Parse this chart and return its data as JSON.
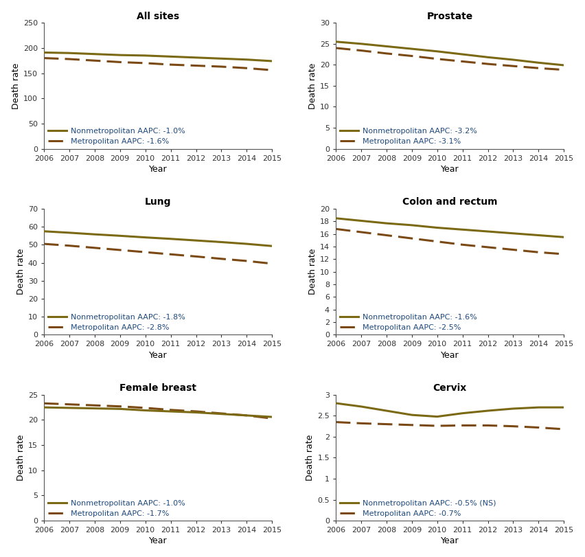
{
  "years": [
    2006,
    2007,
    2008,
    2009,
    2010,
    2011,
    2012,
    2013,
    2014,
    2015
  ],
  "panels": [
    {
      "title": "All sites",
      "nonmetro": [
        191,
        190,
        188,
        186,
        185,
        183,
        181,
        179,
        177,
        174
      ],
      "metro": [
        180,
        178,
        175,
        172,
        170,
        167,
        165,
        163,
        160,
        156
      ],
      "ylim": [
        0,
        250
      ],
      "yticks": [
        0,
        50,
        100,
        150,
        200,
        250
      ],
      "nonmetro_aapc": "-1.0%",
      "metro_aapc": "-1.6%"
    },
    {
      "title": "Prostate",
      "nonmetro": [
        25.5,
        25.0,
        24.4,
        23.8,
        23.2,
        22.5,
        21.8,
        21.2,
        20.5,
        19.9
      ],
      "metro": [
        24.0,
        23.4,
        22.7,
        22.1,
        21.4,
        20.8,
        20.2,
        19.7,
        19.2,
        18.8
      ],
      "ylim": [
        0,
        30
      ],
      "yticks": [
        0,
        5,
        10,
        15,
        20,
        25,
        30
      ],
      "nonmetro_aapc": "-3.2%",
      "metro_aapc": "-3.1%"
    },
    {
      "title": "Lung",
      "nonmetro": [
        57.5,
        56.7,
        55.8,
        55.0,
        54.1,
        53.3,
        52.4,
        51.5,
        50.5,
        49.3
      ],
      "metro": [
        50.5,
        49.5,
        48.3,
        47.1,
        45.9,
        44.7,
        43.5,
        42.2,
        41.0,
        39.5
      ],
      "ylim": [
        0,
        70
      ],
      "yticks": [
        0,
        10,
        20,
        30,
        40,
        50,
        60,
        70
      ],
      "nonmetro_aapc": "-1.8%",
      "metro_aapc": "-2.8%"
    },
    {
      "title": "Colon and rectum",
      "nonmetro": [
        18.5,
        18.1,
        17.7,
        17.4,
        17.0,
        16.7,
        16.4,
        16.1,
        15.8,
        15.5
      ],
      "metro": [
        16.8,
        16.3,
        15.8,
        15.3,
        14.8,
        14.3,
        13.9,
        13.5,
        13.1,
        12.8
      ],
      "ylim": [
        0,
        20
      ],
      "yticks": [
        0,
        2,
        4,
        6,
        8,
        10,
        12,
        14,
        16,
        18,
        20
      ],
      "nonmetro_aapc": "-1.6%",
      "metro_aapc": "-2.5%"
    },
    {
      "title": "Female breast",
      "nonmetro": [
        22.5,
        22.4,
        22.3,
        22.2,
        21.9,
        21.7,
        21.5,
        21.2,
        20.9,
        20.6
      ],
      "metro": [
        23.3,
        23.1,
        22.9,
        22.7,
        22.4,
        22.0,
        21.7,
        21.3,
        20.9,
        20.3
      ],
      "ylim": [
        0,
        25
      ],
      "yticks": [
        0,
        5,
        10,
        15,
        20,
        25
      ],
      "nonmetro_aapc": "-1.0%",
      "metro_aapc": "-1.7%"
    },
    {
      "title": "Cervix",
      "nonmetro": [
        2.8,
        2.72,
        2.62,
        2.52,
        2.48,
        2.56,
        2.62,
        2.67,
        2.7,
        2.7
      ],
      "metro": [
        2.35,
        2.32,
        2.3,
        2.28,
        2.26,
        2.27,
        2.27,
        2.25,
        2.22,
        2.18
      ],
      "ylim": [
        0,
        3
      ],
      "yticks": [
        0,
        0.5,
        1.0,
        1.5,
        2.0,
        2.5,
        3.0
      ],
      "nonmetro_aapc": "-0.5% (NS)",
      "metro_aapc": "-0.7%"
    }
  ],
  "nonmetro_color": "#7B6914",
  "metro_color": "#7B4A14",
  "line_color": "#7B6914",
  "title_fontsize": 10,
  "label_fontsize": 9,
  "tick_fontsize": 8,
  "legend_fontsize": 8,
  "legend_text_color": "#1F497D",
  "line_width": 2.2
}
